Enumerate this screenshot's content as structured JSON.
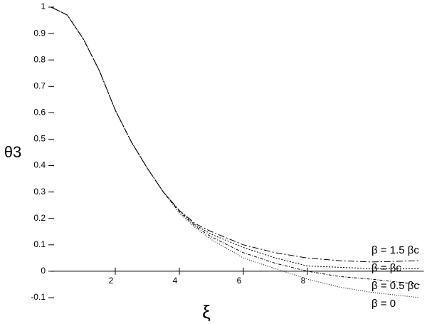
{
  "chart_data": {
    "type": "line",
    "xlabel": "ξ",
    "ylabel": "θ3",
    "x": [
      0,
      0.5,
      1,
      1.5,
      2,
      2.5,
      3,
      3.5,
      4,
      4.5,
      5,
      6,
      7,
      8,
      9,
      10,
      11.5
    ],
    "series": [
      {
        "name": "β = 1.5 βc",
        "color": "#000000",
        "dash": "9 3 2 3",
        "values": [
          1,
          0.97,
          0.88,
          0.76,
          0.61,
          0.49,
          0.39,
          0.3,
          0.23,
          0.18,
          0.15,
          0.1,
          0.07,
          0.05,
          0.04,
          0.035,
          0.04
        ]
      },
      {
        "name": "β = βc",
        "color": "#000000",
        "dash": "2 2",
        "values": [
          1,
          0.97,
          0.88,
          0.76,
          0.61,
          0.49,
          0.39,
          0.3,
          0.23,
          0.175,
          0.14,
          0.09,
          0.05,
          0.02,
          0.015,
          0.01,
          0.01
        ]
      },
      {
        "name": "β = 0.5 βc",
        "color": "#000000",
        "dash": "4 2 1 2",
        "values": [
          1,
          0.97,
          0.88,
          0.76,
          0.61,
          0.49,
          0.39,
          0.3,
          0.225,
          0.17,
          0.13,
          0.07,
          0.03,
          0,
          -0.02,
          -0.03,
          -0.05
        ]
      },
      {
        "name": "β = 0",
        "color": "#000000",
        "dash": "1 2",
        "values": [
          1,
          0.97,
          0.88,
          0.76,
          0.61,
          0.49,
          0.39,
          0.3,
          0.22,
          0.165,
          0.12,
          0.05,
          0.01,
          -0.03,
          -0.06,
          -0.08,
          -0.1
        ]
      }
    ],
    "xlim": [
      0,
      11.5
    ],
    "ylim": [
      -0.1,
      1
    ],
    "xticks": [
      2,
      4,
      6,
      8
    ],
    "yticks": [
      -0.1,
      0,
      0.1,
      0.2,
      0.3,
      0.4,
      0.5,
      0.6,
      0.7,
      0.8,
      0.9,
      1
    ],
    "grid": false
  }
}
